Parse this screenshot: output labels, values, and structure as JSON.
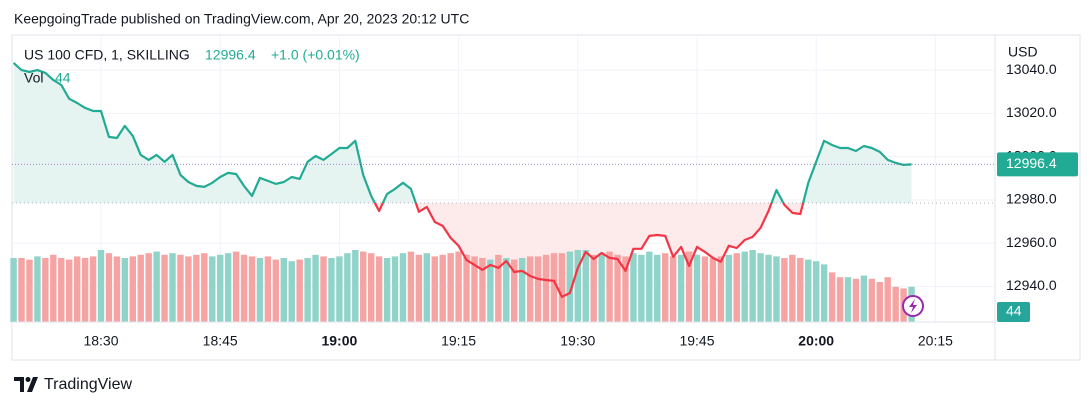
{
  "chart_data": {
    "type": "line",
    "style": "baseline",
    "publisher": "KeepgoingTrade published on TradingView.com, Apr 20, 2023 20:12 UTC",
    "brand": "TradingView",
    "currency": "USD",
    "change_label": "+1.0 (+0.01%)",
    "grid": true,
    "baseline": 12978.6,
    "x": [
      1099,
      1100,
      1101,
      1102,
      1103,
      1104,
      1105,
      1106,
      1107,
      1108,
      1109,
      1110,
      1111,
      1112,
      1113,
      1114,
      1115,
      1116,
      1117,
      1118,
      1119,
      1120,
      1121,
      1122,
      1123,
      1124,
      1125,
      1126,
      1127,
      1128,
      1129,
      1130,
      1131,
      1132,
      1133,
      1134,
      1135,
      1136,
      1137,
      1138,
      1139,
      1140,
      1141,
      1142,
      1143,
      1144,
      1145,
      1146,
      1147,
      1148,
      1149,
      1150,
      1151,
      1152,
      1153,
      1154,
      1155,
      1156,
      1157,
      1158,
      1159,
      1160,
      1161,
      1162,
      1163,
      1164,
      1165,
      1166,
      1167,
      1168,
      1169,
      1170,
      1171,
      1172,
      1173,
      1174,
      1175,
      1176,
      1177,
      1178,
      1179,
      1180,
      1181,
      1182,
      1183,
      1184,
      1185,
      1186,
      1187,
      1188,
      1189,
      1190,
      1191,
      1192,
      1193,
      1194,
      1195,
      1196,
      1197,
      1198,
      1199,
      1200,
      1201,
      1202,
      1203,
      1204,
      1205,
      1206,
      1207,
      1208,
      1209,
      1210,
      1211,
      1212
    ],
    "series": [
      {
        "name": "US 100 CFD, 1, SKILLING",
        "color_above": "#22ab94",
        "color_below": "#f23645",
        "fill_above": "#e6f4f1",
        "fill_below": "#fdeaea",
        "values": [
          13043.3,
          13040.0,
          13039.1,
          13040.0,
          13038.7,
          13035.4,
          13033.1,
          13026.7,
          13024.8,
          13022.5,
          13021.1,
          13021.1,
          13009.1,
          13008.6,
          13014.2,
          13009.6,
          13000.8,
          12998.5,
          13000.8,
          12997.6,
          13000.8,
          12991.5,
          12988.3,
          12986.5,
          12986.0,
          12987.9,
          12990.6,
          12992.5,
          12992.0,
          12986.5,
          12981.8,
          12990.2,
          12988.8,
          12987.4,
          12988.3,
          12990.6,
          12989.7,
          12997.6,
          13000.3,
          12998.5,
          13001.2,
          13004.0,
          13004.0,
          13007.3,
          12991.5,
          12981.8,
          12974.9,
          12982.8,
          12985.1,
          12987.9,
          12985.1,
          12974.5,
          12976.8,
          12969.8,
          12968.0,
          12962.4,
          12958.8,
          12952.3,
          12950.0,
          12947.7,
          12950.0,
          12948.6,
          12951.8,
          12946.7,
          12947.2,
          12944.9,
          12943.5,
          12943.0,
          12942.6,
          12935.2,
          12937.0,
          12948.6,
          12956.0,
          12952.7,
          12955.5,
          12953.2,
          12952.7,
          12947.2,
          12957.4,
          12957.4,
          12963.4,
          12963.8,
          12963.4,
          12953.7,
          12958.3,
          12949.5,
          12958.3,
          12956.0,
          12953.2,
          12951.4,
          12958.8,
          12957.8,
          12961.5,
          12962.9,
          12967.1,
          12974.9,
          12984.6,
          12977.7,
          12974.0,
          12973.5,
          12987.9,
          12997.6,
          13007.3,
          13005.4,
          13004.0,
          13004.0,
          13002.6,
          13004.9,
          13004.0,
          13002.2,
          12998.5,
          12997.1,
          12996.2,
          12996.4
        ]
      }
    ],
    "volume": {
      "name": "Vol",
      "up_color": "#8fd3c9",
      "down_color": "#f5a3a3",
      "values": [
        80,
        80,
        78,
        82,
        80,
        84,
        80,
        78,
        82,
        80,
        82,
        90,
        86,
        82,
        80,
        82,
        84,
        86,
        88,
        84,
        86,
        84,
        82,
        84,
        86,
        82,
        84,
        86,
        88,
        84,
        82,
        80,
        82,
        78,
        80,
        76,
        78,
        80,
        84,
        82,
        80,
        82,
        86,
        90,
        88,
        86,
        82,
        80,
        82,
        86,
        88,
        84,
        86,
        82,
        84,
        86,
        88,
        84,
        82,
        80,
        78,
        84,
        80,
        78,
        80,
        82,
        82,
        84,
        86,
        86,
        88,
        90,
        90,
        84,
        86,
        88,
        84,
        82,
        86,
        84,
        88,
        84,
        86,
        82,
        84,
        88,
        84,
        82,
        80,
        82,
        84,
        86,
        88,
        90,
        86,
        84,
        82,
        80,
        84,
        80,
        78,
        76,
        72,
        62,
        56,
        56,
        54,
        58,
        54,
        50,
        56,
        44,
        42,
        44
      ]
    },
    "xlim": [
      1098.8,
      1222.5
    ],
    "xticks": [
      {
        "value": 1110,
        "label": "18:30"
      },
      {
        "value": 1125,
        "label": "18:45"
      },
      {
        "value": 1140,
        "label": "19:00"
      },
      {
        "value": 1155,
        "label": "19:15"
      },
      {
        "value": 1170,
        "label": "19:30"
      },
      {
        "value": 1185,
        "label": "19:45"
      },
      {
        "value": 1200,
        "label": "20:00"
      },
      {
        "value": 1215,
        "label": "20:15"
      }
    ],
    "ylim": [
      12923.6,
      13056.2
    ],
    "yticks": [
      {
        "value": 12940,
        "label": "12940.0"
      },
      {
        "value": 12960,
        "label": "12960.0"
      },
      {
        "value": 12980,
        "label": "12980.0"
      },
      {
        "value": 13000,
        "label": "13000.0"
      },
      {
        "value": 13020,
        "label": "13020.0"
      },
      {
        "value": 13040,
        "label": "13040.0"
      }
    ]
  }
}
